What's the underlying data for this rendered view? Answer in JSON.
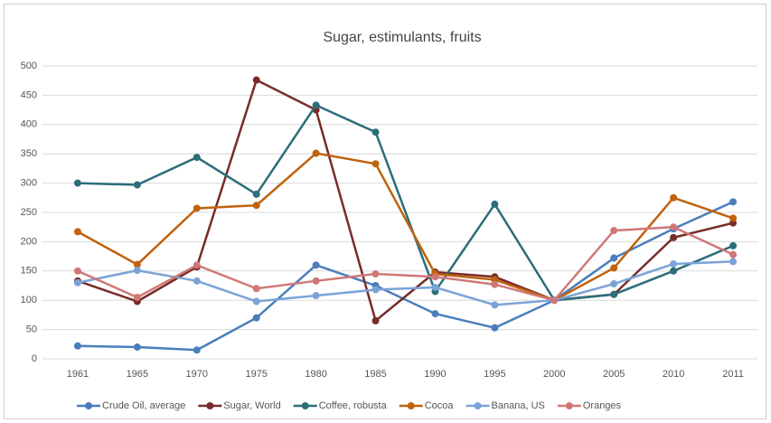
{
  "chart_data": {
    "type": "line",
    "title": "Sugar, estimulants, fruits",
    "categories": [
      "1961",
      "1965",
      "1970",
      "1975",
      "1980",
      "1985",
      "1990",
      "1995",
      "2000",
      "2005",
      "2010",
      "2011"
    ],
    "series": [
      {
        "name": "Crude Oil, average",
        "color": "#4a7ebb",
        "values": [
          22,
          20,
          15,
          70,
          160,
          125,
          77,
          53,
          100,
          172,
          222,
          268
        ]
      },
      {
        "name": "Sugar, World",
        "color": "#772c2a",
        "values": [
          133,
          98,
          157,
          476,
          425,
          65,
          148,
          140,
          100,
          110,
          207,
          232
        ]
      },
      {
        "name": "Coffee, robusta",
        "color": "#2c6e7a",
        "values": [
          300,
          297,
          344,
          281,
          433,
          387,
          115,
          264,
          100,
          110,
          150,
          193
        ]
      },
      {
        "name": "Cocoa",
        "color": "#c0620e",
        "values": [
          217,
          161,
          257,
          262,
          351,
          333,
          145,
          135,
          100,
          155,
          275,
          240
        ]
      },
      {
        "name": "Banana, US",
        "color": "#7ba3d8",
        "values": [
          130,
          151,
          133,
          98,
          108,
          118,
          122,
          92,
          100,
          128,
          162,
          166
        ]
      },
      {
        "name": "Oranges",
        "color": "#d07878",
        "values": [
          150,
          105,
          160,
          120,
          133,
          145,
          140,
          127,
          100,
          219,
          225,
          178
        ]
      }
    ],
    "ylim": [
      0,
      500
    ],
    "yticks": [
      0,
      50,
      100,
      150,
      200,
      250,
      300,
      350,
      400,
      450,
      500
    ],
    "grid": true,
    "legend": "bottom"
  }
}
